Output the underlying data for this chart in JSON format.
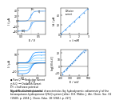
{
  "fig_background": "#ffffff",
  "curve_color": "#55aaff",
  "curve_color2": "#77ccff",
  "dot_color": "#4488cc",
  "line_width": 0.5,
  "tick_fontsize": 2.2,
  "label_fontsize": 2.5,
  "annotation_fontsize": 2.0,
  "caption_fontsize": 2.2,
  "top_left": {
    "xlim": [
      -0.1,
      0.7
    ],
    "ylim": [
      -50,
      50
    ],
    "E_half": 0.28,
    "Id": 38
  },
  "top_right": {
    "xlim": [
      0,
      3
    ],
    "ylim": [
      0,
      55
    ],
    "c_vals": [
      0,
      0.5,
      1.0,
      1.5,
      2.0,
      2.5,
      3.0
    ],
    "Id_vals": [
      0,
      9,
      18,
      27,
      36,
      45,
      54
    ]
  },
  "bottom_left": {
    "xlim": [
      -0.15,
      0.75
    ],
    "ylim": [
      -75,
      75
    ],
    "E_half": 0.28,
    "Ids": [
      15,
      28,
      45,
      62
    ],
    "colors": [
      "#aaddff",
      "#77ccff",
      "#44aaff",
      "#1188ff"
    ]
  },
  "bottom_right": {
    "xlim": [
      200,
      500
    ],
    "ylim": [
      -15,
      25
    ],
    "E_pts": [
      220,
      240,
      260,
      275,
      290,
      305,
      320,
      340,
      360,
      375,
      390,
      410,
      430,
      450,
      470
    ],
    "I_pts": [
      -12,
      -8,
      -5,
      -3,
      0,
      2,
      4,
      7,
      10,
      13,
      15,
      18,
      20,
      22,
      24
    ]
  }
}
